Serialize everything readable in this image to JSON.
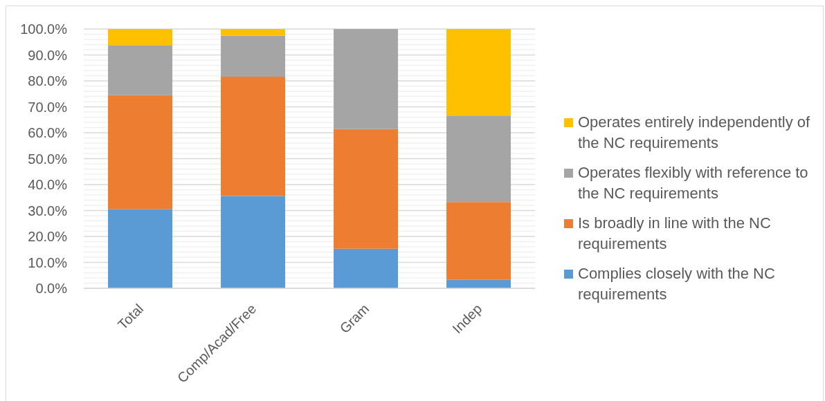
{
  "chart_data": {
    "type": "bar",
    "stacked": true,
    "categories": [
      "Total",
      "Comp/Acad/Free",
      "Gram",
      "Indep"
    ],
    "series": [
      {
        "name": "Complies closely with the NC requirements",
        "color": "#5b9bd5",
        "values": [
          30.6,
          35.6,
          15.3,
          3.3
        ]
      },
      {
        "name": "Is broadly in line with the NC requirements",
        "color": "#ed7d31",
        "values": [
          43.9,
          46.0,
          46.1,
          30.0
        ]
      },
      {
        "name": "Operates flexibly with reference to the NC requirements",
        "color": "#a5a5a5",
        "values": [
          19.3,
          15.9,
          38.6,
          33.3
        ]
      },
      {
        "name": "Operates entirely independently of the NC requirements",
        "color": "#ffc000",
        "values": [
          6.2,
          2.5,
          0,
          33.4
        ]
      }
    ],
    "ylim": [
      0,
      100
    ],
    "yticks": [
      {
        "value": 0,
        "label": "0.0%"
      },
      {
        "value": 2,
        "label": null
      },
      {
        "value": 4,
        "label": null
      },
      {
        "value": 6,
        "label": null
      },
      {
        "value": 8,
        "label": null
      },
      {
        "value": 10,
        "label": "10.0%"
      },
      {
        "value": 12,
        "label": null
      },
      {
        "value": 14,
        "label": null
      },
      {
        "value": 16,
        "label": null
      },
      {
        "value": 18,
        "label": null
      },
      {
        "value": 20,
        "label": "20.0%"
      },
      {
        "value": 22,
        "label": null
      },
      {
        "value": 24,
        "label": null
      },
      {
        "value": 26,
        "label": null
      },
      {
        "value": 28,
        "label": null
      },
      {
        "value": 30,
        "label": "30.0%"
      },
      {
        "value": 32,
        "label": null
      },
      {
        "value": 34,
        "label": null
      },
      {
        "value": 36,
        "label": null
      },
      {
        "value": 38,
        "label": null
      },
      {
        "value": 40,
        "label": "40.0%"
      },
      {
        "value": 42,
        "label": null
      },
      {
        "value": 44,
        "label": null
      },
      {
        "value": 46,
        "label": null
      },
      {
        "value": 48,
        "label": null
      },
      {
        "value": 50,
        "label": "50.0%"
      },
      {
        "value": 52,
        "label": null
      },
      {
        "value": 54,
        "label": null
      },
      {
        "value": 56,
        "label": null
      },
      {
        "value": 58,
        "label": null
      },
      {
        "value": 60,
        "label": "60.0%"
      },
      {
        "value": 62,
        "label": null
      },
      {
        "value": 64,
        "label": null
      },
      {
        "value": 66,
        "label": null
      },
      {
        "value": 68,
        "label": null
      },
      {
        "value": 70,
        "label": "70.0%"
      },
      {
        "value": 72,
        "label": null
      },
      {
        "value": 74,
        "label": null
      },
      {
        "value": 76,
        "label": null
      },
      {
        "value": 78,
        "label": null
      },
      {
        "value": 80,
        "label": "80.0%"
      },
      {
        "value": 82,
        "label": null
      },
      {
        "value": 84,
        "label": null
      },
      {
        "value": 86,
        "label": null
      },
      {
        "value": 88,
        "label": null
      },
      {
        "value": 90,
        "label": "90.0%"
      },
      {
        "value": 92,
        "label": null
      },
      {
        "value": 94,
        "label": null
      },
      {
        "value": 96,
        "label": null
      },
      {
        "value": 98,
        "label": null
      },
      {
        "value": 100,
        "label": "100.0%"
      }
    ],
    "grid": "y",
    "legend": "right"
  }
}
